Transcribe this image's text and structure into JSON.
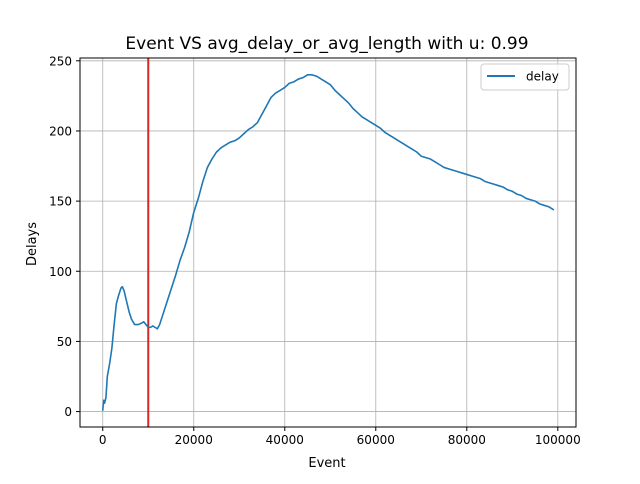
{
  "chart_data": {
    "type": "line",
    "title": "Event VS avg_delay_or_avg_length with u: 0.99",
    "xlabel": "Event",
    "ylabel": "Delays",
    "xlim": [
      -5000,
      104000
    ],
    "ylim": [
      -11,
      252
    ],
    "xticks": [
      0,
      20000,
      40000,
      60000,
      80000,
      100000
    ],
    "yticks": [
      0,
      50,
      100,
      150,
      200,
      250
    ],
    "grid": true,
    "legend": "top-right",
    "vline": {
      "x": 10000,
      "color": "#d62728"
    },
    "series": [
      {
        "name": "delay",
        "color": "#1f77b4",
        "points": [
          [
            0,
            1
          ],
          [
            200,
            8
          ],
          [
            400,
            6
          ],
          [
            700,
            10
          ],
          [
            1000,
            25
          ],
          [
            1500,
            34
          ],
          [
            2000,
            45
          ],
          [
            2500,
            62
          ],
          [
            3000,
            77
          ],
          [
            3500,
            83
          ],
          [
            4000,
            88
          ],
          [
            4300,
            89
          ],
          [
            4700,
            86
          ],
          [
            5200,
            79
          ],
          [
            5800,
            71
          ],
          [
            6300,
            66
          ],
          [
            7000,
            62
          ],
          [
            7800,
            62
          ],
          [
            8500,
            63
          ],
          [
            9000,
            64
          ],
          [
            9500,
            62
          ],
          [
            10000,
            60
          ],
          [
            10500,
            60
          ],
          [
            11000,
            61
          ],
          [
            11500,
            60
          ],
          [
            12000,
            59
          ],
          [
            12500,
            62
          ],
          [
            13000,
            67
          ],
          [
            14000,
            77
          ],
          [
            15000,
            87
          ],
          [
            16000,
            97
          ],
          [
            17000,
            108
          ],
          [
            18000,
            117
          ],
          [
            19000,
            128
          ],
          [
            20000,
            142
          ],
          [
            21000,
            152
          ],
          [
            22000,
            164
          ],
          [
            23000,
            174
          ],
          [
            24000,
            180
          ],
          [
            25000,
            185
          ],
          [
            26000,
            188
          ],
          [
            27000,
            190
          ],
          [
            28000,
            192
          ],
          [
            29000,
            193
          ],
          [
            30000,
            195
          ],
          [
            31000,
            198
          ],
          [
            32000,
            201
          ],
          [
            33000,
            203
          ],
          [
            34000,
            206
          ],
          [
            35000,
            212
          ],
          [
            36000,
            218
          ],
          [
            37000,
            224
          ],
          [
            38000,
            227
          ],
          [
            39000,
            229
          ],
          [
            40000,
            231
          ],
          [
            41000,
            234
          ],
          [
            42000,
            235
          ],
          [
            43000,
            237
          ],
          [
            44000,
            238
          ],
          [
            45000,
            240
          ],
          [
            46000,
            240
          ],
          [
            47000,
            239
          ],
          [
            48000,
            237
          ],
          [
            49000,
            235
          ],
          [
            50000,
            233
          ],
          [
            51000,
            229
          ],
          [
            52000,
            226
          ],
          [
            53000,
            223
          ],
          [
            54000,
            220
          ],
          [
            55000,
            216
          ],
          [
            56000,
            213
          ],
          [
            57000,
            210
          ],
          [
            58000,
            208
          ],
          [
            59000,
            206
          ],
          [
            60000,
            204
          ],
          [
            61000,
            202
          ],
          [
            62000,
            199
          ],
          [
            63000,
            197
          ],
          [
            64000,
            195
          ],
          [
            65000,
            193
          ],
          [
            66000,
            191
          ],
          [
            67000,
            189
          ],
          [
            68000,
            187
          ],
          [
            69000,
            185
          ],
          [
            70000,
            182
          ],
          [
            71000,
            181
          ],
          [
            72000,
            180
          ],
          [
            73000,
            178
          ],
          [
            74000,
            176
          ],
          [
            75000,
            174
          ],
          [
            76000,
            173
          ],
          [
            77000,
            172
          ],
          [
            78000,
            171
          ],
          [
            79000,
            170
          ],
          [
            80000,
            169
          ],
          [
            81000,
            168
          ],
          [
            82000,
            167
          ],
          [
            83000,
            166
          ],
          [
            84000,
            164
          ],
          [
            85000,
            163
          ],
          [
            86000,
            162
          ],
          [
            87000,
            161
          ],
          [
            88000,
            160
          ],
          [
            89000,
            158
          ],
          [
            90000,
            157
          ],
          [
            91000,
            155
          ],
          [
            92000,
            154
          ],
          [
            93000,
            152
          ],
          [
            94000,
            151
          ],
          [
            95000,
            150
          ],
          [
            96000,
            148
          ],
          [
            97000,
            147
          ],
          [
            98000,
            146
          ],
          [
            99000,
            144
          ]
        ]
      }
    ]
  }
}
